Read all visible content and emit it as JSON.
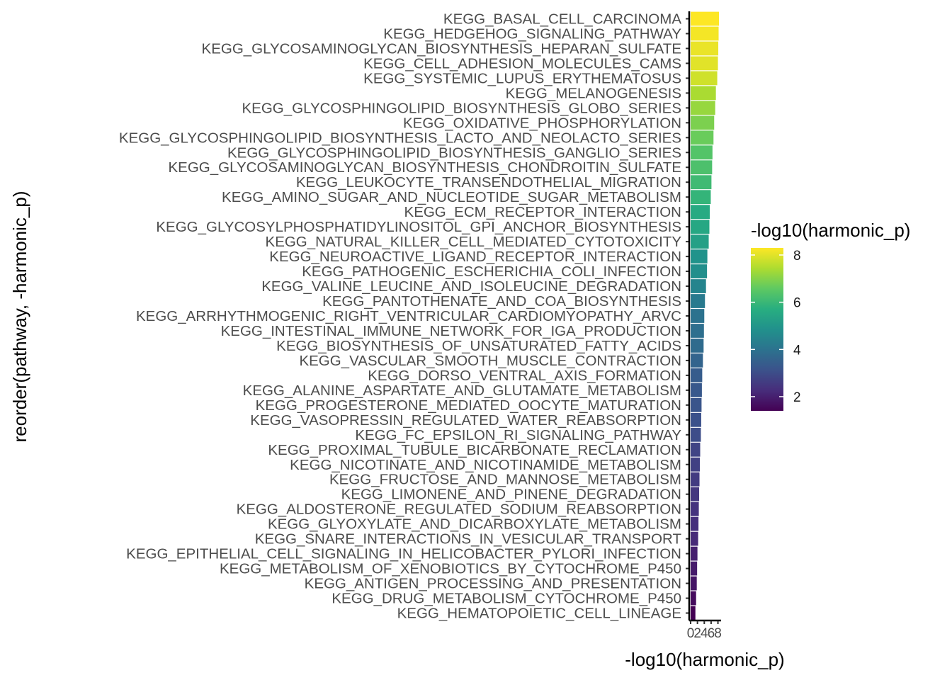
{
  "chart_data": {
    "type": "bar",
    "orientation": "horizontal",
    "xlabel": "-log10(harmonic_p)",
    "ylabel": "reorder(pathway, -harmonic_p)",
    "xlim": [
      0,
      8.3
    ],
    "x_ticks": [
      "0",
      "2",
      "4",
      "6",
      "8"
    ],
    "colorbar": {
      "title": "-log10(harmonic_p)",
      "range": [
        1.4,
        8.3
      ],
      "ticks": [
        "2",
        "4",
        "6",
        "8"
      ],
      "palette": "viridis"
    },
    "legend_position": "right",
    "grid": false,
    "categories": [
      "KEGG_BASAL_CELL_CARCINOMA",
      "KEGG_HEDGEHOG_SIGNALING_PATHWAY",
      "KEGG_GLYCOSAMINOGLYCAN_BIOSYNTHESIS_HEPARAN_SULFATE",
      "KEGG_CELL_ADHESION_MOLECULES_CAMS",
      "KEGG_SYSTEMIC_LUPUS_ERYTHEMATOSUS",
      "KEGG_MELANOGENESIS",
      "KEGG_GLYCOSPHINGOLIPID_BIOSYNTHESIS_GLOBO_SERIES",
      "KEGG_OXIDATIVE_PHOSPHORYLATION",
      "KEGG_GLYCOSPHINGOLIPID_BIOSYNTHESIS_LACTO_AND_NEOLACTO_SERIES",
      "KEGG_GLYCOSPHINGOLIPID_BIOSYNTHESIS_GANGLIO_SERIES",
      "KEGG_GLYCOSAMINOGLYCAN_BIOSYNTHESIS_CHONDROITIN_SULFATE",
      "KEGG_LEUKOCYTE_TRANSENDOTHELIAL_MIGRATION",
      "KEGG_AMINO_SUGAR_AND_NUCLEOTIDE_SUGAR_METABOLISM",
      "KEGG_ECM_RECEPTOR_INTERACTION",
      "KEGG_GLYCOSYLPHOSPHATIDYLINOSITOL_GPI_ANCHOR_BIOSYNTHESIS",
      "KEGG_NATURAL_KILLER_CELL_MEDIATED_CYTOTOXICITY",
      "KEGG_NEUROACTIVE_LIGAND_RECEPTOR_INTERACTION",
      "KEGG_PATHOGENIC_ESCHERICHIA_COLI_INFECTION",
      "KEGG_VALINE_LEUCINE_AND_ISOLEUCINE_DEGRADATION",
      "KEGG_PANTOTHENATE_AND_COA_BIOSYNTHESIS",
      "KEGG_ARRHYTHMOGENIC_RIGHT_VENTRICULAR_CARDIOMYOPATHY_ARVC",
      "KEGG_INTESTINAL_IMMUNE_NETWORK_FOR_IGA_PRODUCTION",
      "KEGG_BIOSYNTHESIS_OF_UNSATURATED_FATTY_ACIDS",
      "KEGG_VASCULAR_SMOOTH_MUSCLE_CONTRACTION",
      "KEGG_DORSO_VENTRAL_AXIS_FORMATION",
      "KEGG_ALANINE_ASPARTATE_AND_GLUTAMATE_METABOLISM",
      "KEGG_PROGESTERONE_MEDIATED_OOCYTE_MATURATION",
      "KEGG_VASOPRESSIN_REGULATED_WATER_REABSORPTION",
      "KEGG_FC_EPSILON_RI_SIGNALING_PATHWAY",
      "KEGG_PROXIMAL_TUBULE_BICARBONATE_RECLAMATION",
      "KEGG_NICOTINATE_AND_NICOTINAMIDE_METABOLISM",
      "KEGG_FRUCTOSE_AND_MANNOSE_METABOLISM",
      "KEGG_LIMONENE_AND_PINENE_DEGRADATION",
      "KEGG_ALDOSTERONE_REGULATED_SODIUM_REABSORPTION",
      "KEGG_GLYOXYLATE_AND_DICARBOXYLATE_METABOLISM",
      "KEGG_SNARE_INTERACTIONS_IN_VESICULAR_TRANSPORT",
      "KEGG_EPITHELIAL_CELL_SIGNALING_IN_HELICOBACTER_PYLORI_INFECTION",
      "KEGG_METABOLISM_OF_XENOBIOTICS_BY_CYTOCHROME_P450",
      "KEGG_ANTIGEN_PROCESSING_AND_PRESENTATION",
      "KEGG_DRUG_METABOLISM_CYTOCHROME_P450",
      "KEGG_HEMATOPOIETIC_CELL_LINEAGE"
    ],
    "values": [
      8.3,
      8.2,
      8.1,
      8.0,
      7.8,
      7.4,
      7.2,
      6.9,
      6.7,
      6.4,
      6.3,
      6.1,
      5.9,
      5.6,
      5.5,
      5.3,
      4.9,
      4.8,
      4.5,
      4.2,
      4.0,
      3.9,
      3.8,
      3.6,
      3.4,
      3.3,
      3.2,
      3.1,
      3.0,
      2.8,
      2.7,
      2.6,
      2.5,
      2.4,
      2.3,
      2.2,
      2.0,
      1.9,
      1.8,
      1.6,
      1.4
    ]
  }
}
